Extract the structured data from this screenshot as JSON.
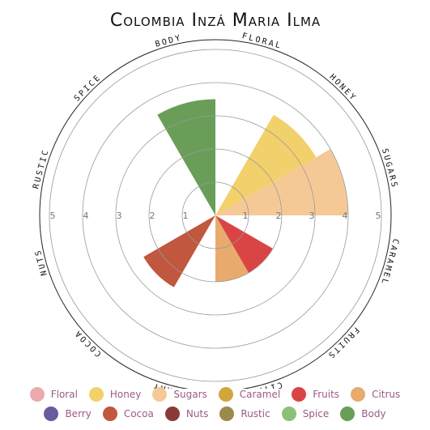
{
  "chart_data": {
    "type": "polar-area",
    "title": "Colombia Inzá Maria Ilma",
    "categories": [
      "Floral",
      "Honey",
      "Sugars",
      "Caramel",
      "Fruits",
      "Citrus",
      "Berry",
      "Cocoa",
      "Nuts",
      "Rustic",
      "Spice",
      "Body"
    ],
    "values": [
      0,
      3.5,
      4,
      0,
      2,
      2,
      0,
      2.5,
      0,
      0,
      0,
      3.5
    ],
    "colors": [
      "#eaaaae",
      "#f2d06b",
      "#f5c996",
      "#d4a53a",
      "#d94545",
      "#e9aa6e",
      "#6a5a9e",
      "#c0573e",
      "#8b3a3a",
      "#9c8a4a",
      "#8cc07a",
      "#6a9e58"
    ],
    "ylim": [
      0,
      5
    ],
    "yticks": [
      1,
      2,
      3,
      4,
      5
    ]
  }
}
